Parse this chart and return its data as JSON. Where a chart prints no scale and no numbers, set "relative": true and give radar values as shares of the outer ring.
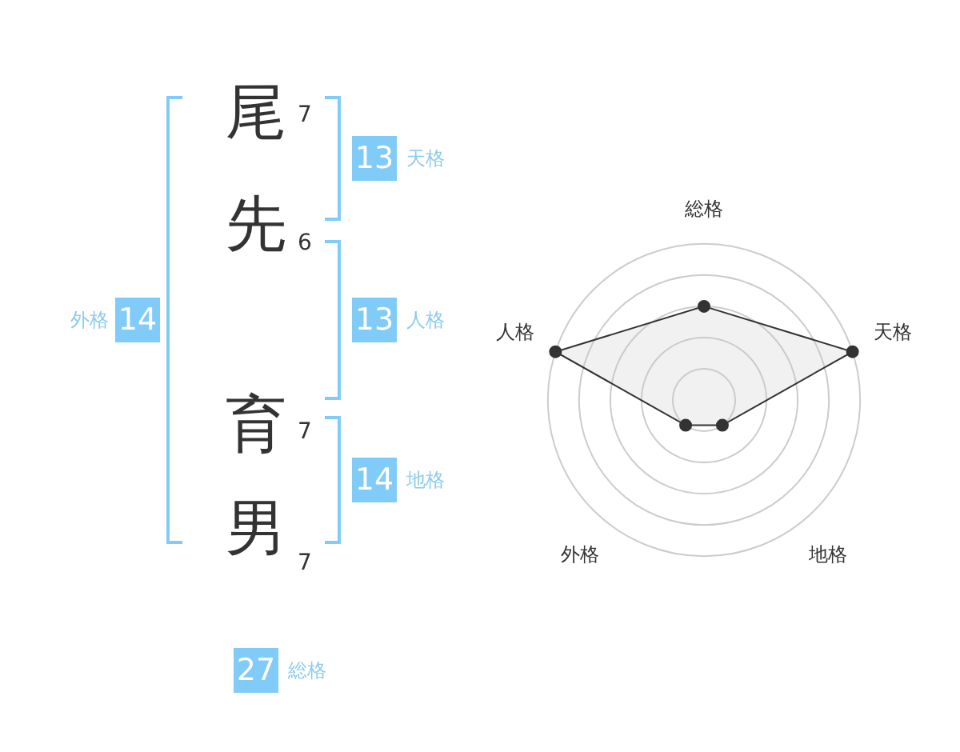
{
  "chart_data": [
    {
      "type": "other",
      "categories": [
        "尾",
        "先",
        "育",
        "男"
      ],
      "values": [
        7,
        6,
        7,
        7
      ],
      "data_labels": true,
      "annotations": [
        "天格",
        "13",
        "人格",
        "13",
        "地格",
        "14",
        "外格",
        "14",
        "総格",
        "27"
      ]
    },
    {
      "type": "radar",
      "categories": [
        "総格",
        "天格",
        "地格",
        "外格",
        "人格"
      ],
      "relative": true,
      "grid": true,
      "marker": "circle",
      "series": [
        {
          "color": "#333333",
          "values": [
            0.6,
            1,
            0.2,
            0.2,
            1
          ]
        }
      ]
    }
  ]
}
